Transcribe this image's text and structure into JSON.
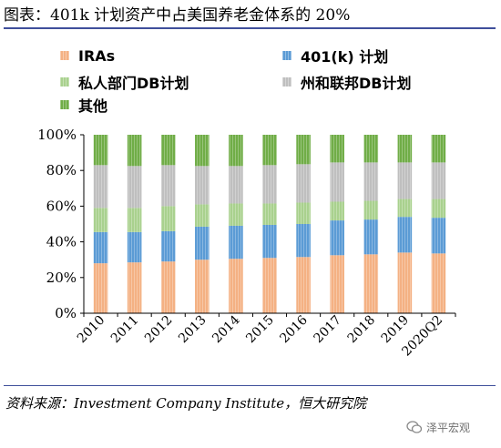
{
  "title": "图表：401k 计划资产中占美国养老金体系的 20%",
  "legend": [
    {
      "label": "IRAs",
      "color": "#f4b183"
    },
    {
      "label": "401(k) 计划",
      "color": "#5b9bd5"
    },
    {
      "label": "私人部门DB计划",
      "color": "#a9d18e"
    },
    {
      "label": "州和联邦DB计划",
      "color": "#bfbfbf"
    },
    {
      "label": "其他",
      "color": "#70ad47"
    }
  ],
  "chart_data": {
    "type": "bar",
    "stacked": true,
    "categories": [
      "2010",
      "2011",
      "2012",
      "2013",
      "2014",
      "2015",
      "2016",
      "2017",
      "2018",
      "2019",
      "2020Q2"
    ],
    "series": [
      {
        "name": "IRAs",
        "color": "#f4b183",
        "values": [
          28,
          28.5,
          29,
          30,
          30.5,
          31,
          31.5,
          32.5,
          33,
          34,
          33.5
        ]
      },
      {
        "name": "401(k) 计划",
        "color": "#5b9bd5",
        "values": [
          17.5,
          17,
          17,
          18.5,
          18.5,
          18.5,
          18.5,
          19.5,
          19.5,
          20,
          20
        ]
      },
      {
        "name": "私人部门DB计划",
        "color": "#a9d18e",
        "values": [
          13.5,
          13.5,
          14,
          12.5,
          12.5,
          12,
          12,
          10.5,
          10.5,
          10,
          10.5
        ]
      },
      {
        "name": "州和联邦DB计划",
        "color": "#bfbfbf",
        "values": [
          24,
          23.5,
          23,
          21.5,
          21,
          21.5,
          21.5,
          22,
          21.5,
          20.5,
          20.5
        ]
      },
      {
        "name": "其他",
        "color": "#70ad47",
        "values": [
          17,
          17.5,
          17,
          17.5,
          17.5,
          17,
          16.5,
          15.5,
          15.5,
          15.5,
          15.5
        ]
      }
    ],
    "y_ticks": [
      "0%",
      "20%",
      "40%",
      "60%",
      "80%",
      "100%"
    ],
    "ylim": [
      0,
      100
    ],
    "grid": false,
    "legend_position": "top"
  },
  "source": "资料来源：Investment Company Institute，恒大研究院",
  "watermark": "泽平宏观"
}
